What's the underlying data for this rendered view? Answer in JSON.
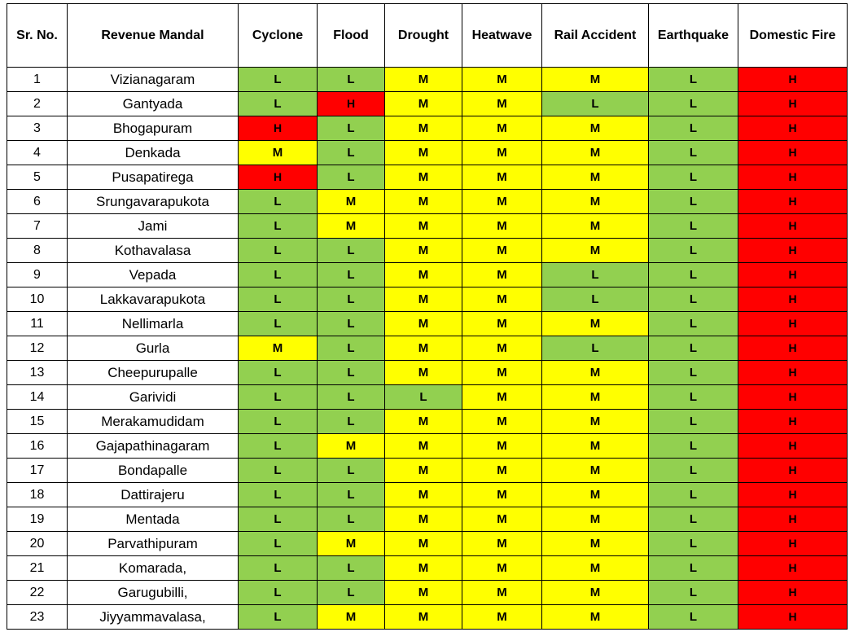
{
  "headers": [
    "Sr. No.",
    "Revenue Mandal",
    "Cyclone",
    "Flood",
    "Drought",
    "Heatwave",
    "Rail Accident",
    "Earthquake",
    "Domestic Fire"
  ],
  "level_colors": {
    "L": "#92d050",
    "M": "#ffff00",
    "H": "#ff0000"
  },
  "rows": [
    {
      "no": "1",
      "mandal": "Vizianagaram",
      "levels": [
        "L",
        "L",
        "M",
        "M",
        "M",
        "L",
        "H"
      ]
    },
    {
      "no": "2",
      "mandal": "Gantyada",
      "levels": [
        "L",
        "H",
        "M",
        "M",
        "L",
        "L",
        "H"
      ]
    },
    {
      "no": "3",
      "mandal": "Bhogapuram",
      "levels": [
        "H",
        "L",
        "M",
        "M",
        "M",
        "L",
        "H"
      ]
    },
    {
      "no": "4",
      "mandal": "Denkada",
      "levels": [
        "M",
        "L",
        "M",
        "M",
        "M",
        "L",
        "H"
      ]
    },
    {
      "no": "5",
      "mandal": "Pusapatirega",
      "levels": [
        "H",
        "L",
        "M",
        "M",
        "M",
        "L",
        "H"
      ]
    },
    {
      "no": "6",
      "mandal": "Srungavarapukota",
      "levels": [
        "L",
        "M",
        "M",
        "M",
        "M",
        "L",
        "H"
      ]
    },
    {
      "no": "7",
      "mandal": "Jami",
      "levels": [
        "L",
        "M",
        "M",
        "M",
        "M",
        "L",
        "H"
      ]
    },
    {
      "no": "8",
      "mandal": "Kothavalasa",
      "levels": [
        "L",
        "L",
        "M",
        "M",
        "M",
        "L",
        "H"
      ]
    },
    {
      "no": "9",
      "mandal": "Vepada",
      "levels": [
        "L",
        "L",
        "M",
        "M",
        "L",
        "L",
        "H"
      ]
    },
    {
      "no": "10",
      "mandal": "Lakkavarapukota",
      "levels": [
        "L",
        "L",
        "M",
        "M",
        "L",
        "L",
        "H"
      ]
    },
    {
      "no": "11",
      "mandal": "Nellimarla",
      "levels": [
        "L",
        "L",
        "M",
        "M",
        "M",
        "L",
        "H"
      ]
    },
    {
      "no": "12",
      "mandal": "Gurla",
      "levels": [
        "M",
        "L",
        "M",
        "M",
        "L",
        "L",
        "H"
      ]
    },
    {
      "no": "13",
      "mandal": "Cheepurupalle",
      "levels": [
        "L",
        "L",
        "M",
        "M",
        "M",
        "L",
        "H"
      ]
    },
    {
      "no": "14",
      "mandal": "Garividi",
      "levels": [
        "L",
        "L",
        "L",
        "M",
        "M",
        "L",
        "H"
      ]
    },
    {
      "no": "15",
      "mandal": "Merakamudidam",
      "levels": [
        "L",
        "L",
        "M",
        "M",
        "M",
        "L",
        "H"
      ]
    },
    {
      "no": "16",
      "mandal": "Gajapathinagaram",
      "levels": [
        "L",
        "M",
        "M",
        "M",
        "M",
        "L",
        "H"
      ]
    },
    {
      "no": "17",
      "mandal": "Bondapalle",
      "levels": [
        "L",
        "L",
        "M",
        "M",
        "M",
        "L",
        "H"
      ]
    },
    {
      "no": "18",
      "mandal": "Dattirajeru",
      "levels": [
        "L",
        "L",
        "M",
        "M",
        "M",
        "L",
        "H"
      ]
    },
    {
      "no": "19",
      "mandal": "Mentada",
      "levels": [
        "L",
        "L",
        "M",
        "M",
        "M",
        "L",
        "H"
      ]
    },
    {
      "no": "20",
      "mandal": "Parvathipuram",
      "levels": [
        "L",
        "M",
        "M",
        "M",
        "M",
        "L",
        "H"
      ]
    },
    {
      "no": "21",
      "mandal": "Komarada,",
      "levels": [
        "L",
        "L",
        "M",
        "M",
        "M",
        "L",
        "H"
      ]
    },
    {
      "no": "22",
      "mandal": "Garugubilli,",
      "levels": [
        "L",
        "L",
        "M",
        "M",
        "M",
        "L",
        "H"
      ]
    },
    {
      "no": "23",
      "mandal": "Jiyyammavalasa,",
      "levels": [
        "L",
        "M",
        "M",
        "M",
        "M",
        "L",
        "H"
      ]
    }
  ]
}
